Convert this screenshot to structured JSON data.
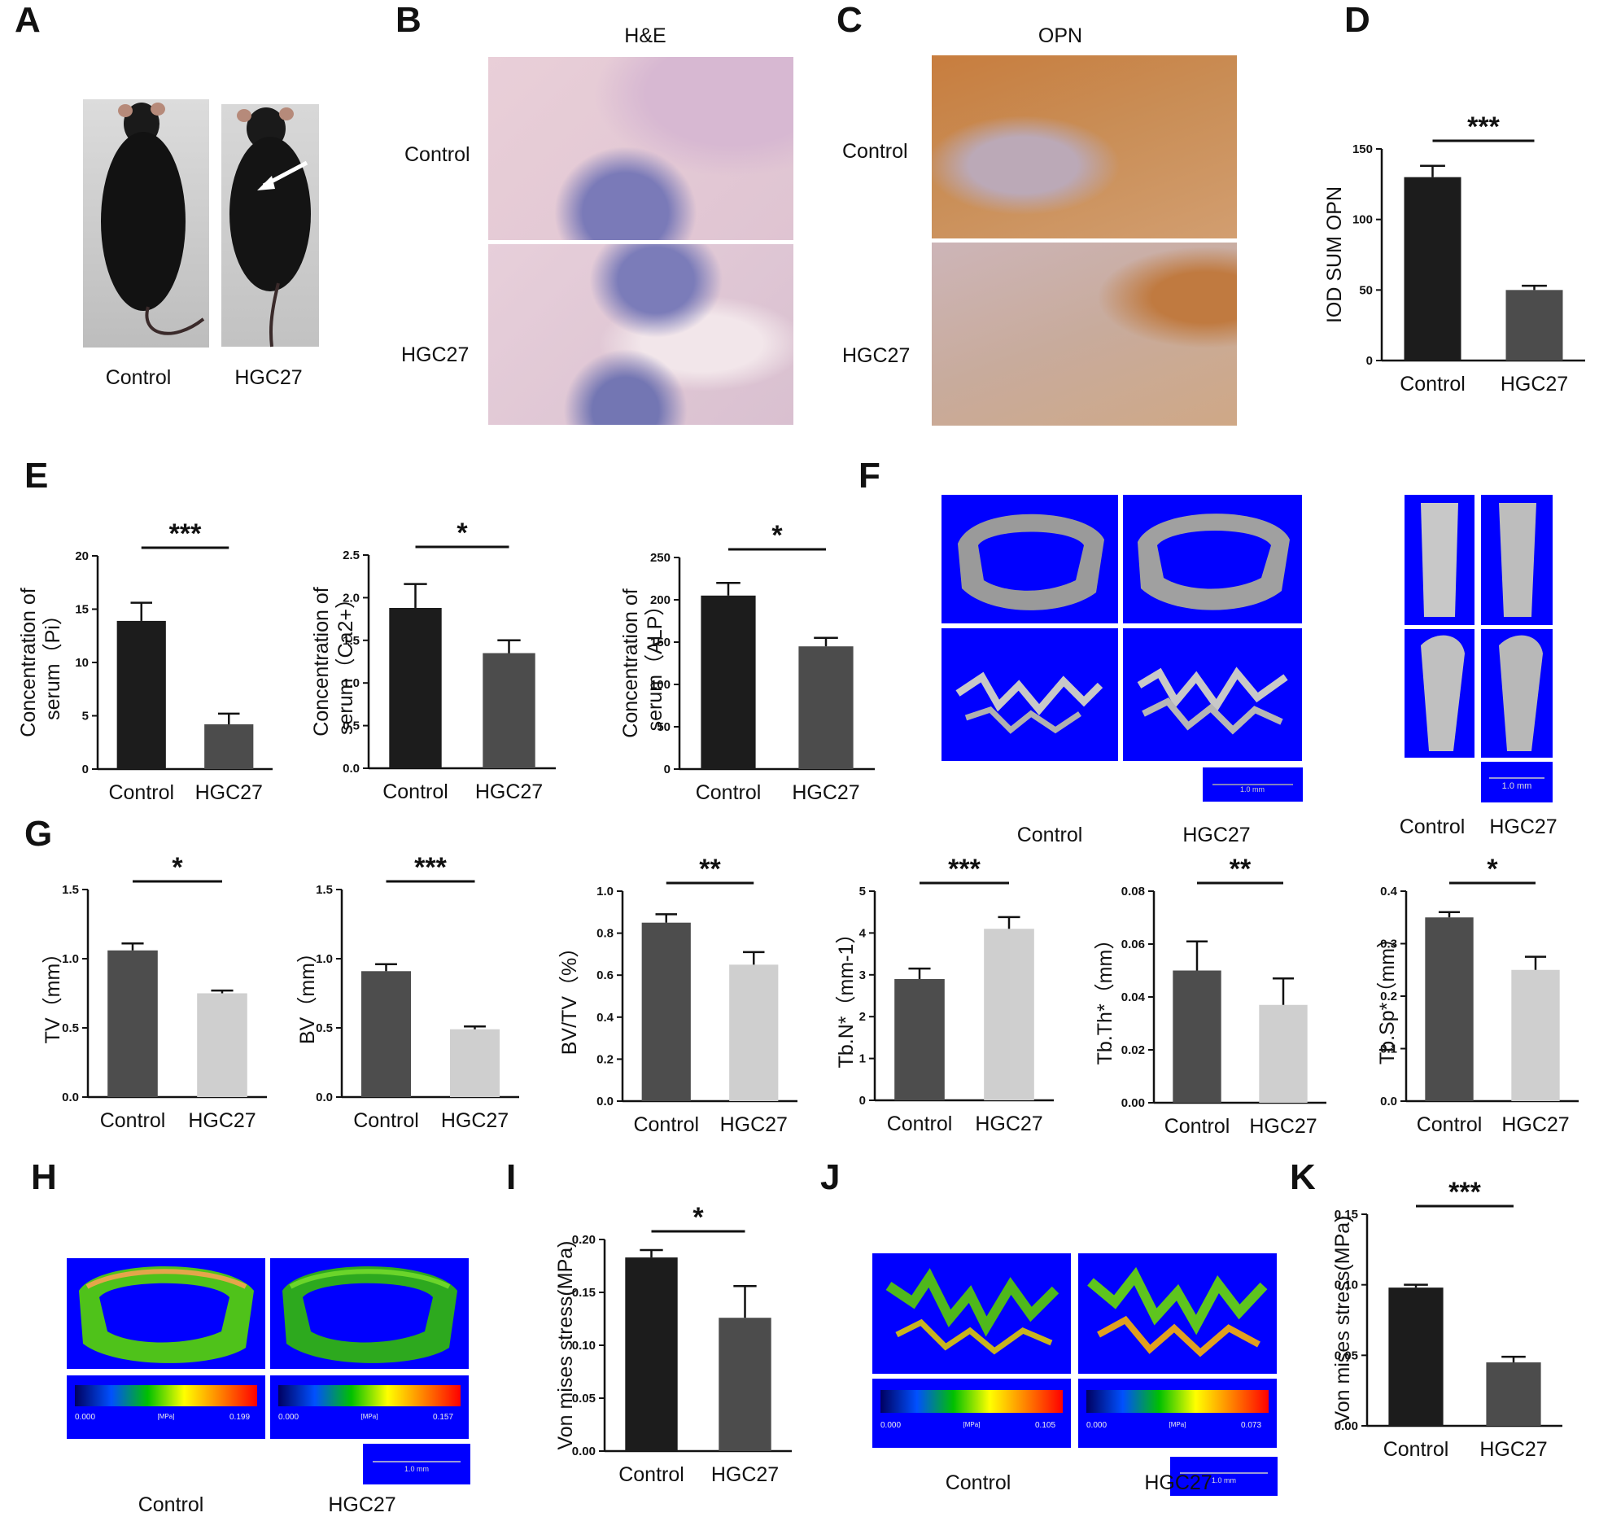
{
  "panels": {
    "A": {
      "letter": "A",
      "labels": [
        "Control",
        "HGC27"
      ]
    },
    "B": {
      "letter": "B",
      "title": "H&E",
      "rows": [
        "Control",
        "HGC27"
      ]
    },
    "C": {
      "letter": "C",
      "title": "OPN",
      "rows": [
        "Control",
        "HGC27"
      ]
    },
    "D": {
      "letter": "D"
    },
    "E": {
      "letter": "E"
    },
    "F": {
      "letter": "F",
      "labels_left": [
        "Control",
        "HGC27"
      ],
      "labels_right": [
        "Control",
        "HGC27"
      ],
      "scalebar": "1.0 mm"
    },
    "G": {
      "letter": "G"
    },
    "H": {
      "letter": "H",
      "labels": [
        "Control",
        "HGC27"
      ],
      "colorbar_min": [
        "0.000",
        "0.000"
      ],
      "colorbar_max": [
        "0.199",
        "0.157"
      ],
      "colorbar_unit": "[MPa]",
      "scalebar": "1.0 mm"
    },
    "I": {
      "letter": "I"
    },
    "J": {
      "letter": "J",
      "labels": [
        "Control",
        "HGC27"
      ],
      "colorbar_min": [
        "0.000",
        "0.000"
      ],
      "colorbar_max": [
        "0.105",
        "0.073"
      ],
      "colorbar_unit": "[MPa]",
      "scalebar": "1.0 mm"
    },
    "K": {
      "letter": "K"
    }
  },
  "colors": {
    "control_dark": "#1c1c1c",
    "hgc_dark": "#4c4c4c",
    "g_control": "#4d4d4d",
    "g_hgc": "#cfcfcf",
    "render_bg": "#0000ff"
  },
  "chart_data": [
    {
      "id": "D",
      "type": "bar",
      "categories": [
        "Control",
        "HGC27"
      ],
      "values": [
        130,
        50
      ],
      "errors": [
        8,
        3
      ],
      "ylabel": "IOD  SUM  OPN",
      "ylim": [
        0,
        150
      ],
      "yticks": [
        "0",
        "50",
        "100",
        "150"
      ],
      "significance": "***"
    },
    {
      "id": "E1",
      "type": "bar",
      "categories": [
        "Control",
        "HGC27"
      ],
      "values": [
        13.9,
        4.2
      ],
      "errors": [
        1.7,
        1.0
      ],
      "ylabel": [
        "Concentration of",
        "serum（Pi）"
      ],
      "ylim": [
        0,
        20
      ],
      "yticks": [
        "0",
        "5",
        "10",
        "15",
        "20"
      ],
      "significance": "***"
    },
    {
      "id": "E2",
      "type": "bar",
      "categories": [
        "Control",
        "HGC27"
      ],
      "values": [
        1.88,
        1.35
      ],
      "errors": [
        0.28,
        0.15
      ],
      "ylabel": [
        "Concentration  of",
        "serum（Ca2+）"
      ],
      "ylim": [
        0,
        2.5
      ],
      "yticks": [
        "0.0",
        "0.5",
        "1.0",
        "1.5",
        "2.0",
        "2.5"
      ],
      "significance": "*"
    },
    {
      "id": "E3",
      "type": "bar",
      "categories": [
        "Control",
        "HGC27"
      ],
      "values": [
        205,
        145
      ],
      "errors": [
        15,
        10
      ],
      "ylabel": [
        "Concentration  of",
        "serum（ALP）"
      ],
      "ylim": [
        0,
        250
      ],
      "yticks": [
        "0",
        "50",
        "100",
        "150",
        "200",
        "250"
      ],
      "significance": "*"
    },
    {
      "id": "G1",
      "type": "bar",
      "categories": [
        "Control",
        "HGC27"
      ],
      "values": [
        1.06,
        0.75
      ],
      "errors": [
        0.05,
        0.02
      ],
      "ylabel": "TV（mm）",
      "ylim": [
        0,
        1.5
      ],
      "yticks": [
        "0.0",
        "0.5",
        "1.0",
        "1.5"
      ],
      "significance": "*"
    },
    {
      "id": "G2",
      "type": "bar",
      "categories": [
        "Control",
        "HGC27"
      ],
      "values": [
        0.91,
        0.49
      ],
      "errors": [
        0.05,
        0.02
      ],
      "ylabel": "BV（mm）",
      "ylim": [
        0,
        1.5
      ],
      "yticks": [
        "0.0",
        "0.5",
        "1.0",
        "1.5"
      ],
      "significance": "***"
    },
    {
      "id": "G3",
      "type": "bar",
      "categories": [
        "Control",
        "HGC27"
      ],
      "values": [
        0.85,
        0.65
      ],
      "errors": [
        0.04,
        0.06
      ],
      "ylabel": "BV/TV（%）",
      "ylim": [
        0,
        1.0
      ],
      "yticks": [
        "0.0",
        "0.2",
        "0.4",
        "0.6",
        "0.8",
        "1.0"
      ],
      "significance": "**"
    },
    {
      "id": "G4",
      "type": "bar",
      "categories": [
        "Control",
        "HGC27"
      ],
      "values": [
        2.9,
        4.1
      ],
      "errors": [
        0.25,
        0.28
      ],
      "ylabel": "Tb.N*（mm-1）",
      "ylim": [
        0,
        5
      ],
      "yticks": [
        "0",
        "1",
        "2",
        "3",
        "4",
        "5"
      ],
      "significance": "***"
    },
    {
      "id": "G5",
      "type": "bar",
      "categories": [
        "Control",
        "HGC27"
      ],
      "values": [
        0.05,
        0.037
      ],
      "errors": [
        0.011,
        0.01
      ],
      "ylabel": "Tb.Th*（mm）",
      "ylim": [
        0,
        0.08
      ],
      "yticks": [
        "0.00",
        "0.02",
        "0.04",
        "0.06",
        "0.08"
      ],
      "significance": "**"
    },
    {
      "id": "G6",
      "type": "bar",
      "categories": [
        "Control",
        "HGC27"
      ],
      "values": [
        0.35,
        0.25
      ],
      "errors": [
        0.01,
        0.025
      ],
      "ylabel": "Tb.Sp*（mm）",
      "ylim": [
        0,
        0.4
      ],
      "yticks": [
        "0.0",
        "0.1",
        "0.2",
        "0.3",
        "0.4"
      ],
      "significance": "*"
    },
    {
      "id": "I",
      "type": "bar",
      "categories": [
        "Control",
        "HGC27"
      ],
      "values": [
        0.183,
        0.126
      ],
      "errors": [
        0.007,
        0.03
      ],
      "ylabel": "Von  mises  stress(MPa)",
      "ylim": [
        0,
        0.2
      ],
      "yticks": [
        "0.00",
        "0.05",
        "0.10",
        "0.15",
        "0.20"
      ],
      "significance": "*"
    },
    {
      "id": "K",
      "type": "bar",
      "categories": [
        "Control",
        "HGC27"
      ],
      "values": [
        0.098,
        0.045
      ],
      "errors": [
        0.002,
        0.004
      ],
      "ylabel": "Von  mises  stress(MPa)",
      "ylim": [
        0,
        0.15
      ],
      "yticks": [
        "0.00",
        "0.05",
        "0.10",
        "0.15"
      ],
      "significance": "***"
    }
  ]
}
